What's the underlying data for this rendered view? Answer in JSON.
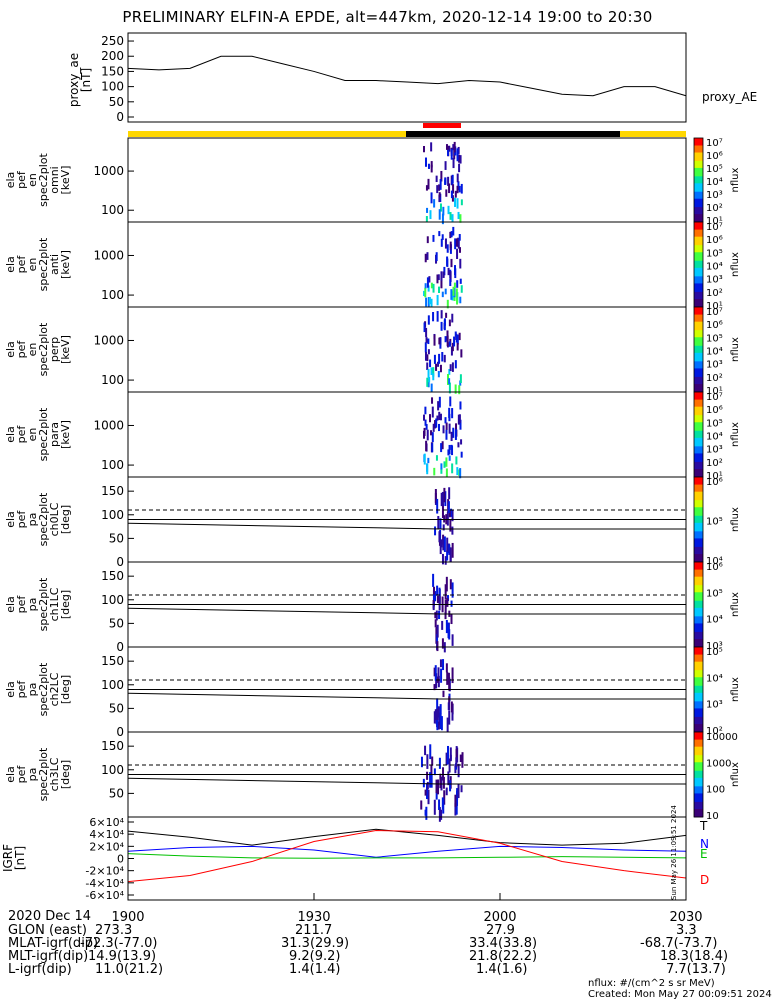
{
  "title": "PRELIMINARY ELFIN-A EPDE, alt=447km, 2020-12-14 19:00 to 20:30",
  "colors": {
    "sunlit_bar": "#FFD700",
    "shadow_bar": "#000000",
    "science_zone": "#FF0000",
    "igrf_T": "#000000",
    "igrf_N": "#0000FF",
    "igrf_E": "#00C000",
    "igrf_D": "#FF0000"
  },
  "chart_data": [
    {
      "panel": "proxy_ae",
      "type": "line",
      "ylabel": [
        "proxy_ae",
        "[nT]"
      ],
      "series_label": "proxy_AE",
      "yticks": [
        "0",
        "50",
        "100",
        "150",
        "200",
        "250"
      ],
      "ylim": [
        0,
        260
      ],
      "x": [
        0,
        5,
        10,
        15,
        20,
        25,
        30,
        35,
        40,
        45,
        50,
        55,
        60,
        65,
        70,
        75,
        80,
        85,
        90
      ],
      "values": [
        160,
        155,
        160,
        200,
        200,
        175,
        150,
        120,
        120,
        115,
        110,
        120,
        115,
        95,
        75,
        70,
        100,
        100,
        70
      ]
    },
    {
      "panel": "ela_pef_en_spec2plot_omni",
      "type": "heatmap",
      "ylabel": [
        "ela",
        "pef",
        "en",
        "spec2plot",
        "omni",
        "[keV]"
      ],
      "yticks": [
        "100",
        "1000"
      ],
      "ylim_log": [
        50,
        7000
      ],
      "colorbar": {
        "label": "nflux",
        "ticks": [
          "10¹",
          "10²",
          "10³",
          "10⁴",
          "10⁵",
          "10⁶",
          "10⁷"
        ]
      }
    },
    {
      "panel": "ela_pef_en_spec2plot_anti",
      "type": "heatmap",
      "ylabel": [
        "ela",
        "pef",
        "en",
        "spec2plot",
        "anti",
        "[keV]"
      ],
      "yticks": [
        "100",
        "1000"
      ],
      "ylim_log": [
        50,
        7000
      ],
      "colorbar": {
        "label": "nflux",
        "ticks": [
          "10¹",
          "10²",
          "10³",
          "10⁴",
          "10⁵",
          "10⁶",
          "10⁷"
        ]
      }
    },
    {
      "panel": "ela_pef_en_spec2plot_perp",
      "type": "heatmap",
      "ylabel": [
        "ela",
        "pef",
        "en",
        "spec2plot",
        "perp",
        "[keV]"
      ],
      "yticks": [
        "100",
        "1000"
      ],
      "ylim_log": [
        50,
        7000
      ],
      "colorbar": {
        "label": "nflux",
        "ticks": [
          "10¹",
          "10²",
          "10³",
          "10⁴",
          "10⁵",
          "10⁶",
          "10⁷"
        ]
      }
    },
    {
      "panel": "ela_pef_en_spec2plot_para",
      "type": "heatmap",
      "ylabel": [
        "ela",
        "pef",
        "en",
        "spec2plot",
        "para",
        "[keV]"
      ],
      "yticks": [
        "100",
        "1000"
      ],
      "ylim_log": [
        50,
        7000
      ],
      "colorbar": {
        "label": "nflux",
        "ticks": [
          "10¹",
          "10²",
          "10³",
          "10⁴",
          "10⁵",
          "10⁶",
          "10⁷"
        ]
      }
    },
    {
      "panel": "ela_pef_pa_spec2plot_ch0LC",
      "type": "heatmap",
      "ylabel": [
        "ela",
        "pef",
        "pa",
        "spec2plot",
        "ch0LC",
        "[deg]"
      ],
      "yticks": [
        "0",
        "50",
        "100",
        "150"
      ],
      "ylim": [
        0,
        180
      ],
      "colorbar": {
        "label": "nflux",
        "ticks": [
          "10⁴",
          "10⁵",
          "10⁶"
        ]
      }
    },
    {
      "panel": "ela_pef_pa_spec2plot_ch1LC",
      "type": "heatmap",
      "ylabel": [
        "ela",
        "pef",
        "pa",
        "spec2plot",
        "ch1LC",
        "[deg]"
      ],
      "yticks": [
        "0",
        "50",
        "100",
        "150"
      ],
      "ylim": [
        0,
        180
      ],
      "colorbar": {
        "label": "nflux",
        "ticks": [
          "10³",
          "10⁴",
          "10⁵",
          "10⁶"
        ]
      }
    },
    {
      "panel": "ela_pef_pa_spec2plot_ch2LC",
      "type": "heatmap",
      "ylabel": [
        "ela",
        "pef",
        "pa",
        "spec2plot",
        "ch2LC",
        "[deg]"
      ],
      "yticks": [
        "0",
        "50",
        "100",
        "150"
      ],
      "ylim": [
        0,
        180
      ],
      "colorbar": {
        "label": "nflux",
        "ticks": [
          "10²",
          "10³",
          "10⁴",
          "10⁵"
        ]
      }
    },
    {
      "panel": "ela_pef_pa_spec2plot_ch3LC",
      "type": "heatmap",
      "ylabel": [
        "ela",
        "pef",
        "pa",
        "spec2plot",
        "ch3LC",
        "[deg]"
      ],
      "yticks": [
        "50",
        "100",
        "150"
      ],
      "ylim": [
        0,
        180
      ],
      "colorbar": {
        "label": "nflux",
        "ticks": [
          "10",
          "100",
          "1000",
          "10000"
        ]
      }
    },
    {
      "panel": "IGRF",
      "type": "line",
      "ylabel": [
        "IGRF",
        "[nT]"
      ],
      "yticks": [
        "-6×10⁴",
        "-4×10⁴",
        "-2×10⁴",
        "0",
        "2×10⁴",
        "4×10⁴",
        "6×10⁴"
      ],
      "ylim": [
        -60000,
        60000
      ],
      "series": [
        {
          "name": "T",
          "x": [
            0,
            10,
            20,
            30,
            40,
            50,
            60,
            70,
            80,
            90
          ],
          "values": [
            45000,
            35000,
            22000,
            36000,
            48000,
            38000,
            26000,
            22000,
            25000,
            38000
          ]
        },
        {
          "name": "N",
          "x": [
            0,
            10,
            20,
            30,
            40,
            50,
            60,
            70,
            80,
            90
          ],
          "values": [
            12000,
            18000,
            20000,
            14000,
            2000,
            12000,
            20000,
            18000,
            14000,
            12000
          ]
        },
        {
          "name": "E",
          "x": [
            0,
            10,
            20,
            30,
            40,
            50,
            60,
            70,
            80,
            90
          ],
          "values": [
            8000,
            4000,
            1000,
            500,
            1000,
            1000,
            2000,
            3000,
            2000,
            1000
          ]
        },
        {
          "name": "D",
          "x": [
            0,
            10,
            20,
            30,
            40,
            50,
            60,
            70,
            80,
            90
          ],
          "values": [
            -38000,
            -28000,
            -5000,
            28000,
            46000,
            44000,
            25000,
            -5000,
            -20000,
            -32000
          ]
        }
      ]
    }
  ],
  "time_axis": {
    "ticks": [
      "1900",
      "1930",
      "2000",
      "2030"
    ],
    "date_label": "2020 Dec 14"
  },
  "footer": {
    "rows": [
      {
        "label": "GLON (east)",
        "values": [
          "273.3",
          "211.7",
          "27.9",
          "3.3"
        ]
      },
      {
        "label": "MLAT-igrf(dip)",
        "values": [
          "-72.3(-77.0)",
          "31.3(29.9)",
          "33.4(33.8)",
          "-68.7(-73.7)"
        ]
      },
      {
        "label": "MLT-igrf(dip)",
        "values": [
          "14.9(13.9)",
          "9.2(9.2)",
          "21.8(22.2)",
          "18.3(18.4)"
        ]
      },
      {
        "label": "L-igrf(dip)",
        "values": [
          "11.0(21.2)",
          "1.4(1.4)",
          "1.4(1.6)",
          "7.7(13.7)"
        ]
      }
    ],
    "units_note": "nflux: #/(cm^2 s sr MeV)",
    "created": "Created: Mon May 27 00:09:51 2024",
    "side_stamp": "Sun May 26 11:09:51 2024"
  }
}
